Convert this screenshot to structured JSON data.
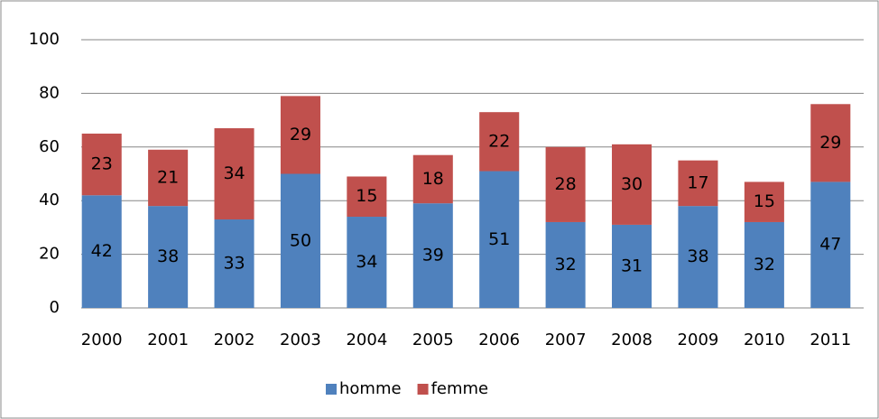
{
  "chart_data": {
    "type": "bar",
    "stacked": true,
    "categories": [
      "2000",
      "2001",
      "2002",
      "2003",
      "2004",
      "2005",
      "2006",
      "2007",
      "2008",
      "2009",
      "2010",
      "2011"
    ],
    "series": [
      {
        "name": "homme",
        "color": "#4f81bd",
        "values": [
          42,
          38,
          33,
          50,
          34,
          39,
          51,
          32,
          31,
          38,
          32,
          47
        ]
      },
      {
        "name": "femme",
        "color": "#c0504d",
        "values": [
          23,
          21,
          34,
          29,
          15,
          18,
          22,
          28,
          30,
          17,
          15,
          29
        ]
      }
    ],
    "ylim": [
      0,
      100
    ],
    "yticks": [
      0,
      20,
      40,
      60,
      80,
      100
    ],
    "grid": true,
    "legend": "bottom",
    "data_labels": true
  }
}
